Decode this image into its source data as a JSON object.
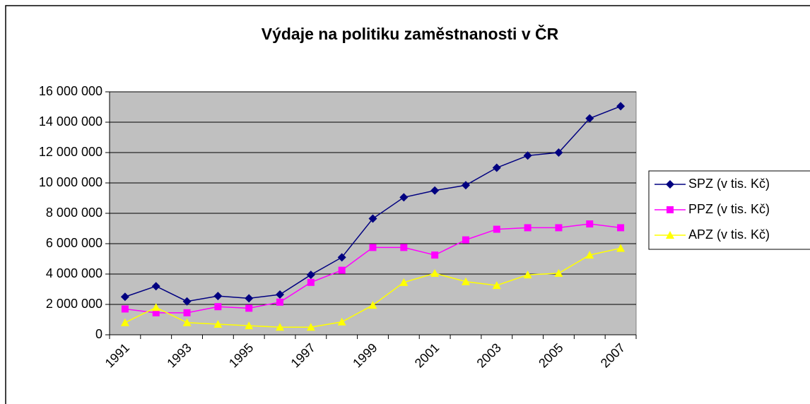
{
  "chart_data": {
    "type": "line",
    "title": "Výdaje na politiku zaměstnanosti v ČR",
    "categories": [
      "1991",
      null,
      "1993",
      null,
      "1995",
      null,
      "1997",
      null,
      "1999",
      null,
      "2001",
      null,
      "2003",
      null,
      "2005",
      null,
      "2007"
    ],
    "series": [
      {
        "name": "SPZ (v tis. Kč)",
        "color": "#000080",
        "marker": "diamond",
        "values": [
          2500000,
          3200000,
          2200000,
          2550000,
          2400000,
          2650000,
          3950000,
          5100000,
          7650000,
          9050000,
          9500000,
          9850000,
          11000000,
          11800000,
          12000000,
          14250000,
          15050000
        ]
      },
      {
        "name": "PPZ (v tis. Kč)",
        "color": "#ff00ff",
        "marker": "square",
        "values": [
          1700000,
          1450000,
          1450000,
          1850000,
          1750000,
          2150000,
          3450000,
          4250000,
          5750000,
          5750000,
          5250000,
          6250000,
          6950000,
          7050000,
          7050000,
          7300000,
          7050000
        ]
      },
      {
        "name": "APZ (v tis. Kč)",
        "color": "#ffff00",
        "marker": "triangle",
        "values": [
          800000,
          1800000,
          800000,
          700000,
          600000,
          500000,
          500000,
          850000,
          1950000,
          3450000,
          4050000,
          3500000,
          3250000,
          3950000,
          4050000,
          5250000,
          5700000
        ]
      }
    ],
    "ylim": [
      0,
      16000000
    ],
    "yticks": [
      0,
      {
        "value": 2000000,
        "label": "2 000 000"
      },
      {
        "value": 4000000,
        "label": "4 000 000"
      },
      {
        "value": 6000000,
        "label": "6 000 000"
      },
      {
        "value": 8000000,
        "label": "8 000 000"
      },
      {
        "value": 10000000,
        "label": "10 000 000"
      },
      {
        "value": 12000000,
        "label": "12 000 000"
      },
      {
        "value": 14000000,
        "label": "14 000 000"
      },
      {
        "value": 16000000,
        "label": "16 000 000"
      }
    ],
    "grid": true,
    "legend": "right",
    "plot_background": "#c0c0c0"
  }
}
